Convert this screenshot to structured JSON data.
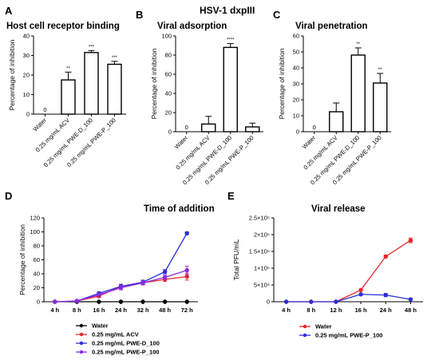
{
  "figure": {
    "title": "HSV-1 dxpIII"
  },
  "colors": {
    "water": "#000000",
    "acv": "#e8262b",
    "pwe_d": "#2b2fd6",
    "pwe_p": "#8a2be2",
    "release_water": "#e8262b",
    "release_pwe_p": "#2b2fd6"
  },
  "chart_data": [
    {
      "panel": "A",
      "type": "bar",
      "title": "Host cell receptor binding",
      "ylabel": "Percentage of inhibition",
      "ylim": [
        0,
        40
      ],
      "yticks": [
        0,
        10,
        20,
        30,
        40
      ],
      "categories": [
        "Water",
        "0.25 mg/mL ACV",
        "0.25 mg/mL PWE-D_100",
        "0.25 mg/mL PWE-P_100"
      ],
      "values": [
        0,
        17.5,
        31.5,
        25.5
      ],
      "errors": [
        0,
        4,
        1,
        1.5
      ],
      "annotations": [
        "0",
        "**",
        "***",
        "***"
      ]
    },
    {
      "panel": "B",
      "type": "bar",
      "title": "Viral adsorption",
      "ylabel": "Percentage of inhibition",
      "ylim": [
        0,
        100
      ],
      "yticks": [
        0,
        20,
        40,
        60,
        80,
        100
      ],
      "categories": [
        "Water",
        "0.25 mg/mL ACV",
        "0.25 mg/mL PWE-D_100",
        "0.25 mg/mL PWE-P_100"
      ],
      "values": [
        0,
        8,
        88,
        5
      ],
      "errors": [
        0,
        8,
        4,
        4
      ],
      "annotations": [
        "0",
        "",
        "****",
        ""
      ]
    },
    {
      "panel": "C",
      "type": "bar",
      "title": "Viral penetration",
      "ylabel": "Percentage of inhibition",
      "ylim": [
        0,
        60
      ],
      "yticks": [
        0,
        10,
        20,
        30,
        40,
        50,
        60
      ],
      "categories": [
        "Water",
        "0.25 mg/mL ACV",
        "0.25 mg/mL PWE-D_100",
        "0.25 mg/mL PWE-P_100"
      ],
      "values": [
        0,
        12.5,
        48,
        30.5
      ],
      "errors": [
        0,
        5.5,
        4.5,
        6
      ],
      "annotations": [
        "0",
        "",
        "**",
        "**"
      ]
    },
    {
      "panel": "D",
      "type": "line",
      "title": "Time of addition",
      "ylabel": "Percentage of inhibition",
      "ylim": [
        0,
        120
      ],
      "yticks": [
        0,
        20,
        40,
        60,
        80,
        100,
        120
      ],
      "categories": [
        "4 h",
        "8 h",
        "16 h",
        "24 h",
        "32 h",
        "48 h",
        "72 h"
      ],
      "series": [
        {
          "name": "Water",
          "values": [
            0,
            0,
            0,
            0,
            0,
            0,
            0
          ],
          "errors": [
            0,
            0,
            0,
            0,
            0,
            0,
            0
          ]
        },
        {
          "name": "0.25 mg/mL ACV",
          "values": [
            0,
            1,
            8,
            22,
            27,
            32,
            36
          ],
          "errors": [
            0,
            1,
            2,
            3,
            3,
            3,
            5
          ]
        },
        {
          "name": "0.25 mg/mL PWE-D_100",
          "values": [
            0,
            1,
            12,
            22,
            28,
            43,
            98
          ],
          "errors": [
            0,
            1,
            2,
            3,
            3,
            3,
            2
          ]
        },
        {
          "name": "0.25 mg/mL PWE-P_100",
          "values": [
            0,
            1,
            10,
            20,
            27,
            35,
            45
          ],
          "errors": [
            0,
            1,
            2,
            3,
            3,
            3,
            6
          ]
        }
      ]
    },
    {
      "panel": "E",
      "type": "line",
      "title": "Viral release",
      "ylabel": "Total PFU/mL",
      "ylim": [
        0,
        250000
      ],
      "yticks": [
        0,
        50000,
        100000,
        150000,
        200000,
        250000
      ],
      "ytick_labels": [
        "0",
        "5×10⁴",
        "1×10⁵",
        "1.5×10⁵",
        "2×10⁵",
        "2.5×10⁵"
      ],
      "categories": [
        "4 h",
        "8 h",
        "12 h",
        "16 h",
        "24 h",
        "48 h"
      ],
      "series": [
        {
          "name": "Water",
          "values": [
            0,
            0,
            0,
            35000,
            135000,
            183000
          ],
          "errors": [
            0,
            0,
            0,
            2000,
            4000,
            7000
          ]
        },
        {
          "name": "0.25 mg/mL PWE-P_100",
          "values": [
            0,
            0,
            0,
            22000,
            20000,
            7000
          ],
          "errors": [
            0,
            0,
            0,
            2000,
            5000,
            2000
          ]
        }
      ]
    }
  ]
}
